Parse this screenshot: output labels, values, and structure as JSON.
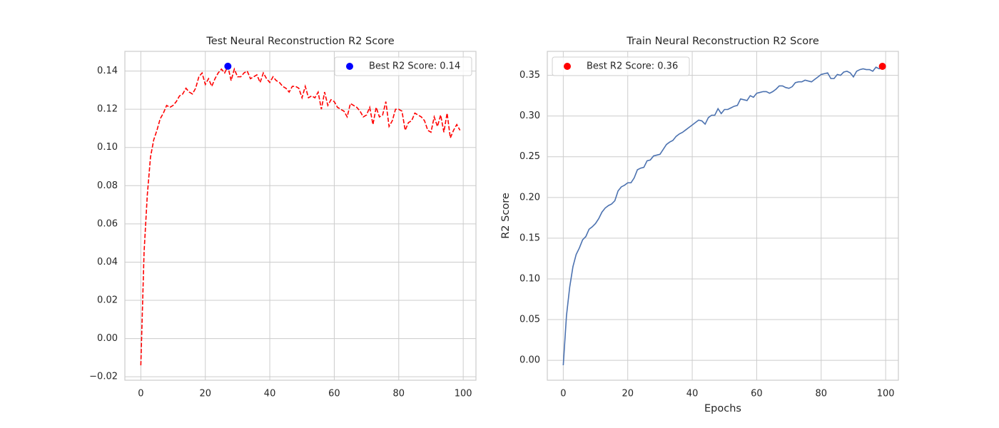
{
  "chart_data": [
    {
      "type": "line",
      "title": "Test Neural Reconstruction R2 Score",
      "x": [
        0,
        1,
        2,
        3,
        4,
        5,
        6,
        7,
        8,
        9,
        10,
        11,
        12,
        13,
        14,
        15,
        16,
        17,
        18,
        19,
        20,
        21,
        22,
        23,
        24,
        25,
        26,
        27,
        28,
        29,
        30,
        31,
        32,
        33,
        34,
        35,
        36,
        37,
        38,
        39,
        40,
        41,
        42,
        43,
        44,
        45,
        46,
        47,
        48,
        49,
        50,
        51,
        52,
        53,
        54,
        55,
        56,
        57,
        58,
        59,
        60,
        61,
        62,
        63,
        64,
        65,
        66,
        67,
        68,
        69,
        70,
        71,
        72,
        73,
        74,
        75,
        76,
        77,
        78,
        79,
        80,
        81,
        82,
        83,
        84,
        85,
        86,
        87,
        88,
        89,
        90,
        91,
        92,
        93,
        94,
        95,
        96,
        97,
        98,
        99
      ],
      "series": [
        {
          "color": "#ff0000",
          "style": "dashed",
          "values": [
            -0.014,
            0.045,
            0.075,
            0.095,
            0.104,
            0.109,
            0.115,
            0.118,
            0.122,
            0.121,
            0.122,
            0.124,
            0.127,
            0.128,
            0.131,
            0.129,
            0.128,
            0.131,
            0.137,
            0.139,
            0.133,
            0.136,
            0.132,
            0.136,
            0.139,
            0.141,
            0.139,
            0.1425,
            0.135,
            0.141,
            0.137,
            0.137,
            0.139,
            0.14,
            0.136,
            0.137,
            0.138,
            0.134,
            0.139,
            0.136,
            0.134,
            0.137,
            0.135,
            0.134,
            0.132,
            0.131,
            0.129,
            0.132,
            0.132,
            0.131,
            0.126,
            0.132,
            0.126,
            0.127,
            0.126,
            0.129,
            0.12,
            0.129,
            0.122,
            0.125,
            0.124,
            0.121,
            0.12,
            0.119,
            0.116,
            0.123,
            0.122,
            0.121,
            0.119,
            0.116,
            0.117,
            0.121,
            0.112,
            0.121,
            0.116,
            0.117,
            0.124,
            0.111,
            0.114,
            0.12,
            0.12,
            0.119,
            0.109,
            0.113,
            0.114,
            0.118,
            0.117,
            0.116,
            0.114,
            0.109,
            0.108,
            0.116,
            0.111,
            0.117,
            0.108,
            0.118,
            0.105,
            0.109,
            0.112,
            0.109
          ]
        },
        {
          "type": "scatter",
          "name": "Best R2 Score: 0.14",
          "color": "#0000ff",
          "x": [
            27
          ],
          "values": [
            0.1425
          ]
        }
      ],
      "xlim": [
        -4.95,
        103.95
      ],
      "xticks": [
        0,
        20,
        40,
        60,
        80,
        100
      ],
      "ylim": [
        -0.0218,
        0.1503
      ],
      "yticks": [
        {
          "value": -0.02,
          "label": "−0.02"
        },
        {
          "value": 0,
          "label": "0.00"
        },
        {
          "value": 0.02,
          "label": "0.02"
        },
        {
          "value": 0.04,
          "label": "0.04"
        },
        {
          "value": 0.06,
          "label": "0.06"
        },
        {
          "value": 0.08,
          "label": "0.08"
        },
        {
          "value": 0.1,
          "label": "0.10"
        },
        {
          "value": 0.12,
          "label": "0.12"
        },
        {
          "value": 0.14,
          "label": "0.14"
        }
      ],
      "grid": true,
      "legend": "upper right"
    },
    {
      "type": "line",
      "title": "Train Neural Reconstruction R2 Score",
      "xlabel": "Epochs",
      "ylabel": "R2 Score",
      "x": [
        0,
        1,
        2,
        3,
        4,
        5,
        6,
        7,
        8,
        9,
        10,
        11,
        12,
        13,
        14,
        15,
        16,
        17,
        18,
        19,
        20,
        21,
        22,
        23,
        24,
        25,
        26,
        27,
        28,
        29,
        30,
        31,
        32,
        33,
        34,
        35,
        36,
        37,
        38,
        39,
        40,
        41,
        42,
        43,
        44,
        45,
        46,
        47,
        48,
        49,
        50,
        51,
        52,
        53,
        54,
        55,
        56,
        57,
        58,
        59,
        60,
        61,
        62,
        63,
        64,
        65,
        66,
        67,
        68,
        69,
        70,
        71,
        72,
        73,
        74,
        75,
        76,
        77,
        78,
        79,
        80,
        81,
        82,
        83,
        84,
        85,
        86,
        87,
        88,
        89,
        90,
        91,
        92,
        93,
        94,
        95,
        96,
        97,
        98,
        99
      ],
      "series": [
        {
          "color": "#4c72b0",
          "style": "solid",
          "values": [
            -0.006,
            0.055,
            0.09,
            0.115,
            0.13,
            0.138,
            0.148,
            0.152,
            0.161,
            0.164,
            0.168,
            0.174,
            0.182,
            0.187,
            0.19,
            0.192,
            0.196,
            0.208,
            0.213,
            0.215,
            0.218,
            0.218,
            0.224,
            0.234,
            0.236,
            0.237,
            0.245,
            0.246,
            0.251,
            0.252,
            0.253,
            0.259,
            0.265,
            0.268,
            0.27,
            0.275,
            0.278,
            0.28,
            0.283,
            0.286,
            0.289,
            0.292,
            0.295,
            0.294,
            0.29,
            0.298,
            0.301,
            0.301,
            0.309,
            0.303,
            0.308,
            0.308,
            0.31,
            0.312,
            0.313,
            0.321,
            0.32,
            0.319,
            0.325,
            0.323,
            0.328,
            0.329,
            0.33,
            0.33,
            0.328,
            0.33,
            0.333,
            0.337,
            0.337,
            0.335,
            0.334,
            0.336,
            0.341,
            0.342,
            0.342,
            0.344,
            0.343,
            0.342,
            0.345,
            0.348,
            0.351,
            0.352,
            0.353,
            0.346,
            0.346,
            0.351,
            0.35,
            0.354,
            0.355,
            0.353,
            0.348,
            0.355,
            0.357,
            0.358,
            0.357,
            0.357,
            0.355,
            0.36,
            0.358,
            0.361
          ]
        },
        {
          "type": "scatter",
          "name": "Best R2 Score: 0.36",
          "color": "#ff0000",
          "x": [
            99
          ],
          "values": [
            0.361
          ]
        }
      ],
      "xlim": [
        -4.95,
        103.95
      ],
      "xticks": [
        0,
        20,
        40,
        60,
        80,
        100
      ],
      "ylim": [
        -0.0244,
        0.3794
      ],
      "yticks": [
        {
          "value": 0,
          "label": "0.00"
        },
        {
          "value": 0.05,
          "label": "0.05"
        },
        {
          "value": 0.1,
          "label": "0.10"
        },
        {
          "value": 0.15,
          "label": "0.15"
        },
        {
          "value": 0.2,
          "label": "0.20"
        },
        {
          "value": 0.25,
          "label": "0.25"
        },
        {
          "value": 0.3,
          "label": "0.30"
        },
        {
          "value": 0.35,
          "label": "0.35"
        }
      ],
      "grid": true,
      "legend": "upper left"
    }
  ]
}
